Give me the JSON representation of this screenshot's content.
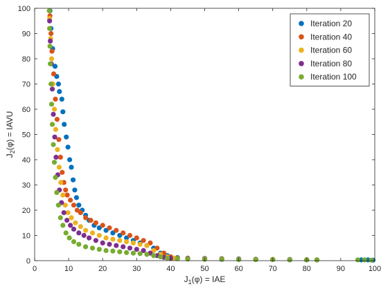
{
  "chart_data": {
    "type": "scatter",
    "xlabel": {
      "main": "J",
      "sub": "1",
      "rest": "(φ) = IAE"
    },
    "ylabel": {
      "main": "J",
      "sub": "2",
      "rest": "(φ) = IAVU"
    },
    "xlim": [
      0,
      100
    ],
    "ylim": [
      0,
      100
    ],
    "xticks": [
      0,
      10,
      20,
      30,
      40,
      50,
      60,
      70,
      80,
      90,
      100
    ],
    "yticks": [
      0,
      10,
      20,
      30,
      40,
      50,
      60,
      70,
      80,
      90,
      100
    ],
    "grid": false,
    "legend_position": "top-right",
    "series": [
      {
        "name": "Iteration 20",
        "color": "#0072BD",
        "points": [
          [
            4.5,
            99
          ],
          [
            4.8,
            92
          ],
          [
            5.3,
            84
          ],
          [
            6,
            77
          ],
          [
            6.5,
            73
          ],
          [
            7,
            70
          ],
          [
            7.3,
            67
          ],
          [
            8,
            64
          ],
          [
            8.3,
            59
          ],
          [
            8.7,
            54
          ],
          [
            9.3,
            49
          ],
          [
            9.8,
            45
          ],
          [
            10.3,
            40
          ],
          [
            10.8,
            37
          ],
          [
            11.3,
            32
          ],
          [
            11.8,
            28
          ],
          [
            12.3,
            25
          ],
          [
            13,
            22
          ],
          [
            14,
            20
          ],
          [
            15,
            18
          ],
          [
            16,
            16
          ],
          [
            17.5,
            14
          ],
          [
            19,
            13
          ],
          [
            21,
            12
          ],
          [
            23,
            11
          ],
          [
            25,
            10
          ],
          [
            27,
            9
          ],
          [
            29,
            8
          ],
          [
            31,
            7
          ],
          [
            33,
            6
          ],
          [
            35,
            5
          ],
          [
            37,
            3
          ],
          [
            39,
            2
          ],
          [
            40,
            1.5
          ],
          [
            42,
            1.2
          ],
          [
            45,
            1
          ],
          [
            50,
            0.9
          ],
          [
            55,
            0.8
          ],
          [
            60,
            0.7
          ],
          [
            65,
            0.6
          ],
          [
            70,
            0.5
          ],
          [
            75,
            0.5
          ],
          [
            80,
            0.4
          ],
          [
            83,
            0.3
          ],
          [
            96,
            0.3
          ],
          [
            98,
            0.3
          ],
          [
            99.5,
            0.2
          ]
        ]
      },
      {
        "name": "Iteration 40",
        "color": "#D95319",
        "points": [
          [
            4.5,
            97
          ],
          [
            4.8,
            90
          ],
          [
            5.1,
            83
          ],
          [
            5.6,
            74
          ],
          [
            6.1,
            64
          ],
          [
            6.6,
            56
          ],
          [
            7.1,
            48
          ],
          [
            7.6,
            41
          ],
          [
            8.1,
            35
          ],
          [
            8.6,
            31
          ],
          [
            9.1,
            28
          ],
          [
            9.6,
            26
          ],
          [
            10.5,
            24
          ],
          [
            11.5,
            22
          ],
          [
            12.5,
            20
          ],
          [
            13.5,
            19
          ],
          [
            15,
            17
          ],
          [
            16.5,
            16
          ],
          [
            18,
            15
          ],
          [
            20,
            14
          ],
          [
            22,
            13
          ],
          [
            24,
            12
          ],
          [
            26,
            11
          ],
          [
            28,
            10
          ],
          [
            30,
            9
          ],
          [
            32,
            8
          ],
          [
            34,
            7
          ],
          [
            36,
            5
          ],
          [
            38,
            3
          ],
          [
            40,
            1.5
          ],
          [
            42,
            1
          ],
          [
            45,
            0.9
          ],
          [
            50,
            0.8
          ],
          [
            55,
            0.7
          ],
          [
            60,
            0.6
          ],
          [
            65,
            0.5
          ],
          [
            70,
            0.5
          ],
          [
            75,
            0.4
          ],
          [
            80,
            0.4
          ],
          [
            83,
            0.3
          ]
        ]
      },
      {
        "name": "Iteration 60",
        "color": "#EDB120",
        "points": [
          [
            4.4,
            96
          ],
          [
            4.7,
            88
          ],
          [
            5,
            80
          ],
          [
            5.4,
            70
          ],
          [
            5.8,
            60
          ],
          [
            6.2,
            52
          ],
          [
            6.7,
            44
          ],
          [
            7.2,
            37
          ],
          [
            7.7,
            31
          ],
          [
            8.3,
            26
          ],
          [
            9,
            22
          ],
          [
            9.8,
            19
          ],
          [
            10.8,
            17
          ],
          [
            12,
            15
          ],
          [
            13.5,
            13.5
          ],
          [
            15,
            12
          ],
          [
            17,
            11
          ],
          [
            19,
            10
          ],
          [
            21,
            9
          ],
          [
            23,
            8.5
          ],
          [
            25,
            8
          ],
          [
            27,
            7.5
          ],
          [
            29,
            7
          ],
          [
            31,
            6.5
          ],
          [
            33,
            6
          ],
          [
            35,
            4
          ],
          [
            37,
            2.5
          ],
          [
            39,
            1.5
          ],
          [
            41,
            1
          ],
          [
            45,
            0.8
          ],
          [
            50,
            0.7
          ],
          [
            55,
            0.6
          ],
          [
            60,
            0.6
          ],
          [
            65,
            0.5
          ],
          [
            70,
            0.5
          ],
          [
            75,
            0.4
          ],
          [
            80,
            0.4
          ],
          [
            83,
            0.3
          ]
        ]
      },
      {
        "name": "Iteration 80",
        "color": "#7E2F8E",
        "points": [
          [
            4.4,
            95
          ],
          [
            4.6,
            87
          ],
          [
            4.9,
            78
          ],
          [
            5.2,
            68
          ],
          [
            5.5,
            58
          ],
          [
            5.9,
            49
          ],
          [
            6.3,
            41
          ],
          [
            6.8,
            34
          ],
          [
            7.3,
            28
          ],
          [
            7.9,
            23
          ],
          [
            8.6,
            19
          ],
          [
            9.5,
            16
          ],
          [
            10.5,
            14
          ],
          [
            11.5,
            12.5
          ],
          [
            13,
            11
          ],
          [
            14.5,
            10
          ],
          [
            16,
            9
          ],
          [
            18,
            8
          ],
          [
            20,
            7
          ],
          [
            22,
            6.5
          ],
          [
            24,
            6
          ],
          [
            26,
            5.5
          ],
          [
            28,
            5
          ],
          [
            30,
            4.5
          ],
          [
            32,
            4
          ],
          [
            34,
            3
          ],
          [
            36,
            2
          ],
          [
            38,
            1.3
          ],
          [
            40,
            1
          ],
          [
            45,
            0.7
          ],
          [
            50,
            0.6
          ],
          [
            55,
            0.5
          ],
          [
            60,
            0.5
          ],
          [
            65,
            0.4
          ],
          [
            70,
            0.4
          ],
          [
            75,
            0.3
          ],
          [
            80,
            0.3
          ],
          [
            83,
            0.3
          ]
        ]
      },
      {
        "name": "Iteration 100",
        "color": "#77AC30",
        "points": [
          [
            4.3,
            99
          ],
          [
            4.4,
            92
          ],
          [
            4.5,
            85
          ],
          [
            4.6,
            78
          ],
          [
            4.8,
            70
          ],
          [
            5,
            62
          ],
          [
            5.2,
            54
          ],
          [
            5.5,
            46
          ],
          [
            5.8,
            39
          ],
          [
            6.1,
            33
          ],
          [
            6.5,
            27
          ],
          [
            7,
            22
          ],
          [
            7.6,
            17
          ],
          [
            8.3,
            14
          ],
          [
            9.2,
            11
          ],
          [
            10.2,
            9
          ],
          [
            11.5,
            7.5
          ],
          [
            13,
            6.5
          ],
          [
            15,
            5.5
          ],
          [
            17,
            5
          ],
          [
            19,
            4.5
          ],
          [
            21,
            4
          ],
          [
            23,
            3.8
          ],
          [
            25,
            3.5
          ],
          [
            27,
            3.2
          ],
          [
            29,
            3
          ],
          [
            31,
            2.8
          ],
          [
            33,
            2.5
          ],
          [
            35,
            2
          ],
          [
            37,
            1.5
          ],
          [
            39,
            1
          ],
          [
            42,
            0.8
          ],
          [
            45,
            0.6
          ],
          [
            50,
            0.5
          ],
          [
            55,
            0.5
          ],
          [
            60,
            0.4
          ],
          [
            65,
            0.4
          ],
          [
            70,
            0.4
          ],
          [
            75,
            0.3
          ],
          [
            80,
            0.3
          ],
          [
            83,
            0.3
          ],
          [
            95,
            0.3
          ],
          [
            97,
            0.3
          ],
          [
            99,
            0.2
          ]
        ]
      }
    ]
  }
}
